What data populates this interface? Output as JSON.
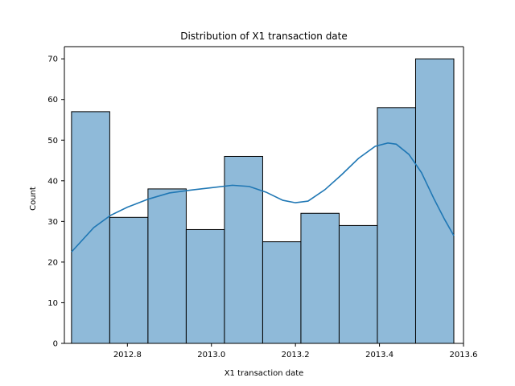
{
  "chart_data": {
    "type": "bar",
    "title": "Distribution of X1 transaction date",
    "xlabel": "X1 transaction date",
    "ylabel": "Count",
    "xlim": [
      2012.65,
      2013.6
    ],
    "ylim": [
      0,
      73
    ],
    "xticks": [
      2012.8,
      2013.0,
      2013.2,
      2013.4,
      2013.6
    ],
    "xtick_labels": [
      "2012.8",
      "2013.0",
      "2013.2",
      "2013.4",
      "2013.6"
    ],
    "yticks": [
      0,
      10,
      20,
      30,
      40,
      50,
      60,
      70
    ],
    "ytick_labels": [
      "0",
      "10",
      "20",
      "30",
      "40",
      "50",
      "60",
      "70"
    ],
    "bin_edges": [
      2012.667,
      2012.758,
      2012.849,
      2012.94,
      2013.031,
      2013.122,
      2013.213,
      2013.304,
      2013.395,
      2013.486,
      2013.577
    ],
    "values": [
      57,
      31,
      38,
      28,
      46,
      25,
      32,
      29,
      58,
      70
    ],
    "kde": {
      "x": [
        2012.667,
        2012.72,
        2012.76,
        2012.8,
        2012.85,
        2012.9,
        2012.95,
        2013.0,
        2013.05,
        2013.09,
        2013.13,
        2013.17,
        2013.2,
        2013.23,
        2013.27,
        2013.31,
        2013.35,
        2013.39,
        2013.42,
        2013.44,
        2013.47,
        2013.5,
        2013.53,
        2013.555,
        2013.577
      ],
      "y": [
        22.5,
        28.5,
        31.5,
        33.5,
        35.5,
        37.0,
        37.7,
        38.3,
        38.9,
        38.6,
        37.2,
        35.2,
        34.6,
        35.0,
        37.8,
        41.5,
        45.5,
        48.5,
        49.3,
        49.0,
        46.5,
        42.0,
        35.5,
        30.5,
        26.5
      ]
    },
    "bar_color": "#8fbad9",
    "bar_edge_color": "#000000",
    "line_color": "#1f77b4",
    "grid": false,
    "legend": "none"
  }
}
